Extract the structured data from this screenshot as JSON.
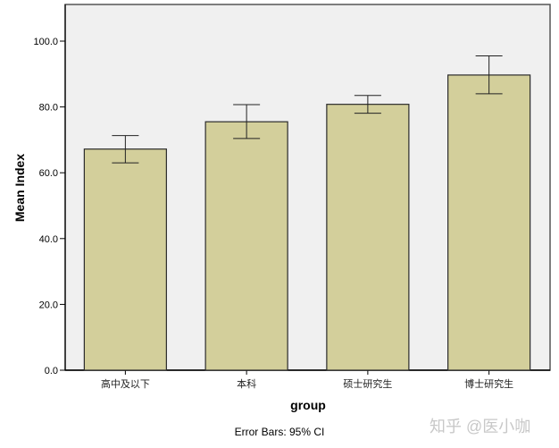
{
  "chart_data": {
    "type": "bar",
    "title": "",
    "xlabel": "group",
    "ylabel": "Mean Index",
    "categories": [
      "高中及以下",
      "本科",
      "硕士研究生",
      "博士研究生"
    ],
    "values": [
      67.2,
      75.5,
      80.8,
      89.7
    ],
    "error_bars": {
      "type": "95% CI",
      "lower": [
        63.0,
        70.4,
        78.1,
        84.0
      ],
      "upper": [
        71.3,
        80.7,
        83.5,
        95.5
      ]
    },
    "ylim": [
      0,
      111
    ],
    "yticks": [
      0,
      20,
      40,
      60,
      80,
      100
    ],
    "ytick_labels": [
      "0.0",
      "20.0",
      "40.0",
      "60.0",
      "80.0",
      "100.0"
    ],
    "grid": false,
    "legend": null,
    "footnote": "Error Bars: 95% CI",
    "colors": {
      "bar_fill": "#d3cf9b",
      "bar_stroke": "#2b2b2b",
      "plot_bg": "#f0f0f0",
      "frame": "#555555",
      "error_bar": "#222222"
    }
  },
  "watermark": "知乎 @医小咖"
}
